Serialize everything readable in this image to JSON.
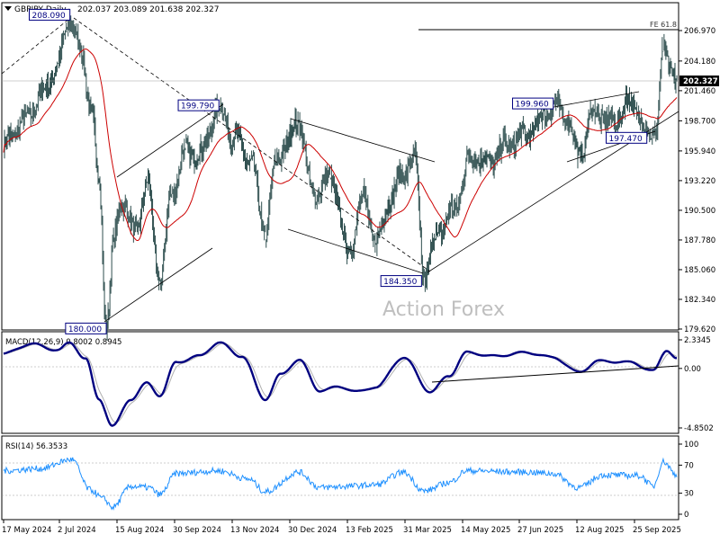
{
  "header": {
    "symbol": "GBPJPY,Daily",
    "ohlc": "202.037 203.089 201.638 202.327"
  },
  "watermark": "Action Forex",
  "fe_label": "FE 61.8",
  "current_price": "202.327",
  "colors": {
    "bar": "#2f4f4f",
    "ma": "#cc0000",
    "macd": "#000080",
    "signal": "#b0b0b0",
    "rsi": "#1e90ff",
    "price_tag": "#000000",
    "label_border": "#000080"
  },
  "chart_data": [
    {
      "type": "line",
      "panel": "price",
      "title": "GBPJPY,Daily",
      "y_ticks": [
        "206.970",
        "204.180",
        "201.460",
        "198.700",
        "195.940",
        "193.220",
        "190.500",
        "187.780",
        "185.060",
        "182.340",
        "179.620"
      ],
      "ylim": [
        179.62,
        208.4
      ],
      "x_ticks": [
        "17 May 2024",
        "2 Jul 2024",
        "15 Aug 2024",
        "30 Sep 2024",
        "13 Nov 2024",
        "30 Dec 2024",
        "13 Feb 2025",
        "31 Mar 2025",
        "14 May 2025",
        "27 Jun 2025",
        "12 Aug 2025",
        "25 Sep 2025"
      ],
      "annotations": [
        {
          "text": "208.090",
          "bar": 73,
          "value": 208.09
        },
        {
          "text": "180.000",
          "bar": 113,
          "value": 180.0
        },
        {
          "text": "199.790",
          "bar": 237,
          "value": 199.79
        },
        {
          "text": "184.350",
          "bar": 463,
          "value": 184.35
        },
        {
          "text": "199.960",
          "bar": 605,
          "value": 199.96
        },
        {
          "text": "197.470",
          "bar": 710,
          "value": 197.47
        }
      ],
      "fe_level": 206.97,
      "key_points": [
        {
          "bar": 0,
          "value": 196.5
        },
        {
          "bar": 25,
          "value": 199.0
        },
        {
          "bar": 45,
          "value": 201.5
        },
        {
          "bar": 60,
          "value": 204.0
        },
        {
          "bar": 73,
          "value": 208.09
        },
        {
          "bar": 85,
          "value": 205.0
        },
        {
          "bar": 97,
          "value": 199.5
        },
        {
          "bar": 105,
          "value": 193.0
        },
        {
          "bar": 113,
          "value": 180.0
        },
        {
          "bar": 122,
          "value": 188.0
        },
        {
          "bar": 130,
          "value": 191.5
        },
        {
          "bar": 145,
          "value": 188.5
        },
        {
          "bar": 158,
          "value": 193.0
        },
        {
          "bar": 172,
          "value": 184.0
        },
        {
          "bar": 185,
          "value": 192.0
        },
        {
          "bar": 200,
          "value": 196.0
        },
        {
          "bar": 215,
          "value": 195.5
        },
        {
          "bar": 237,
          "value": 199.79
        },
        {
          "bar": 255,
          "value": 197.0
        },
        {
          "bar": 272,
          "value": 195.0
        },
        {
          "bar": 288,
          "value": 188.5
        },
        {
          "bar": 300,
          "value": 195.0
        },
        {
          "bar": 310,
          "value": 196.5
        },
        {
          "bar": 325,
          "value": 198.8
        },
        {
          "bar": 340,
          "value": 192.0
        },
        {
          "bar": 360,
          "value": 193.5
        },
        {
          "bar": 380,
          "value": 186.5
        },
        {
          "bar": 395,
          "value": 192.0
        },
        {
          "bar": 410,
          "value": 187.5
        },
        {
          "bar": 425,
          "value": 191.5
        },
        {
          "bar": 440,
          "value": 194.0
        },
        {
          "bar": 452,
          "value": 195.5
        },
        {
          "bar": 463,
          "value": 184.35
        },
        {
          "bar": 478,
          "value": 188.5
        },
        {
          "bar": 495,
          "value": 190.5
        },
        {
          "bar": 515,
          "value": 195.5
        },
        {
          "bar": 535,
          "value": 195.0
        },
        {
          "bar": 555,
          "value": 196.5
        },
        {
          "bar": 575,
          "value": 197.5
        },
        {
          "bar": 605,
          "value": 199.96
        },
        {
          "bar": 620,
          "value": 199.0
        },
        {
          "bar": 633,
          "value": 195.5
        },
        {
          "bar": 650,
          "value": 199.5
        },
        {
          "bar": 670,
          "value": 198.5
        },
        {
          "bar": 690,
          "value": 200.5
        },
        {
          "bar": 710,
          "value": 197.47
        },
        {
          "bar": 718,
          "value": 198.0
        },
        {
          "bar": 726,
          "value": 205.0
        },
        {
          "bar": 735,
          "value": 203.5
        },
        {
          "bar": 741,
          "value": 202.3
        }
      ]
    },
    {
      "type": "line",
      "panel": "macd",
      "title": "MACD(12,26,9) 0.8002 0.8945",
      "y_ticks": [
        "2.3345",
        "0.00",
        "-4.8502"
      ],
      "ylim": [
        -4.8502,
        2.3345
      ],
      "key_points": [
        {
          "bar": 0,
          "value": 1.2
        },
        {
          "bar": 30,
          "value": 2.0
        },
        {
          "bar": 60,
          "value": 1.5
        },
        {
          "bar": 73,
          "value": 2.1
        },
        {
          "bar": 90,
          "value": 0.8
        },
        {
          "bar": 105,
          "value": -2.5
        },
        {
          "bar": 120,
          "value": -4.7
        },
        {
          "bar": 140,
          "value": -2.5
        },
        {
          "bar": 158,
          "value": -1.2
        },
        {
          "bar": 172,
          "value": -2.2
        },
        {
          "bar": 190,
          "value": 0.5
        },
        {
          "bar": 215,
          "value": 1.0
        },
        {
          "bar": 237,
          "value": 2.1
        },
        {
          "bar": 262,
          "value": 1.0
        },
        {
          "bar": 288,
          "value": -2.5
        },
        {
          "bar": 305,
          "value": -0.5
        },
        {
          "bar": 325,
          "value": 0.7
        },
        {
          "bar": 348,
          "value": -1.8
        },
        {
          "bar": 370,
          "value": -1.5
        },
        {
          "bar": 390,
          "value": -1.9
        },
        {
          "bar": 410,
          "value": -1.5
        },
        {
          "bar": 440,
          "value": 0.9
        },
        {
          "bar": 470,
          "value": -1.9
        },
        {
          "bar": 490,
          "value": -0.6
        },
        {
          "bar": 510,
          "value": 1.3
        },
        {
          "bar": 540,
          "value": 1.0
        },
        {
          "bar": 575,
          "value": 1.3
        },
        {
          "bar": 605,
          "value": 0.9
        },
        {
          "bar": 633,
          "value": -0.3
        },
        {
          "bar": 655,
          "value": 0.6
        },
        {
          "bar": 690,
          "value": 0.5
        },
        {
          "bar": 715,
          "value": -0.2
        },
        {
          "bar": 730,
          "value": 1.5
        },
        {
          "bar": 741,
          "value": 0.8
        }
      ]
    },
    {
      "type": "line",
      "panel": "rsi",
      "title": "RSI(14) 56.3533",
      "y_ticks": [
        "100",
        "70",
        "30",
        "0"
      ],
      "ylim": [
        0,
        100
      ],
      "levels": [
        70,
        30
      ],
      "key_points": [
        {
          "bar": 0,
          "value": 62
        },
        {
          "bar": 40,
          "value": 65
        },
        {
          "bar": 75,
          "value": 78
        },
        {
          "bar": 95,
          "value": 35
        },
        {
          "bar": 110,
          "value": 22
        },
        {
          "bar": 120,
          "value": 10
        },
        {
          "bar": 140,
          "value": 40
        },
        {
          "bar": 160,
          "value": 38
        },
        {
          "bar": 172,
          "value": 28
        },
        {
          "bar": 190,
          "value": 58
        },
        {
          "bar": 237,
          "value": 62
        },
        {
          "bar": 270,
          "value": 50
        },
        {
          "bar": 288,
          "value": 32
        },
        {
          "bar": 325,
          "value": 60
        },
        {
          "bar": 348,
          "value": 38
        },
        {
          "bar": 380,
          "value": 40
        },
        {
          "bar": 410,
          "value": 42
        },
        {
          "bar": 440,
          "value": 60
        },
        {
          "bar": 463,
          "value": 33
        },
        {
          "bar": 490,
          "value": 45
        },
        {
          "bar": 510,
          "value": 62
        },
        {
          "bar": 575,
          "value": 60
        },
        {
          "bar": 605,
          "value": 58
        },
        {
          "bar": 633,
          "value": 38
        },
        {
          "bar": 660,
          "value": 56
        },
        {
          "bar": 700,
          "value": 55
        },
        {
          "bar": 715,
          "value": 40
        },
        {
          "bar": 726,
          "value": 75
        },
        {
          "bar": 741,
          "value": 56
        }
      ]
    }
  ]
}
